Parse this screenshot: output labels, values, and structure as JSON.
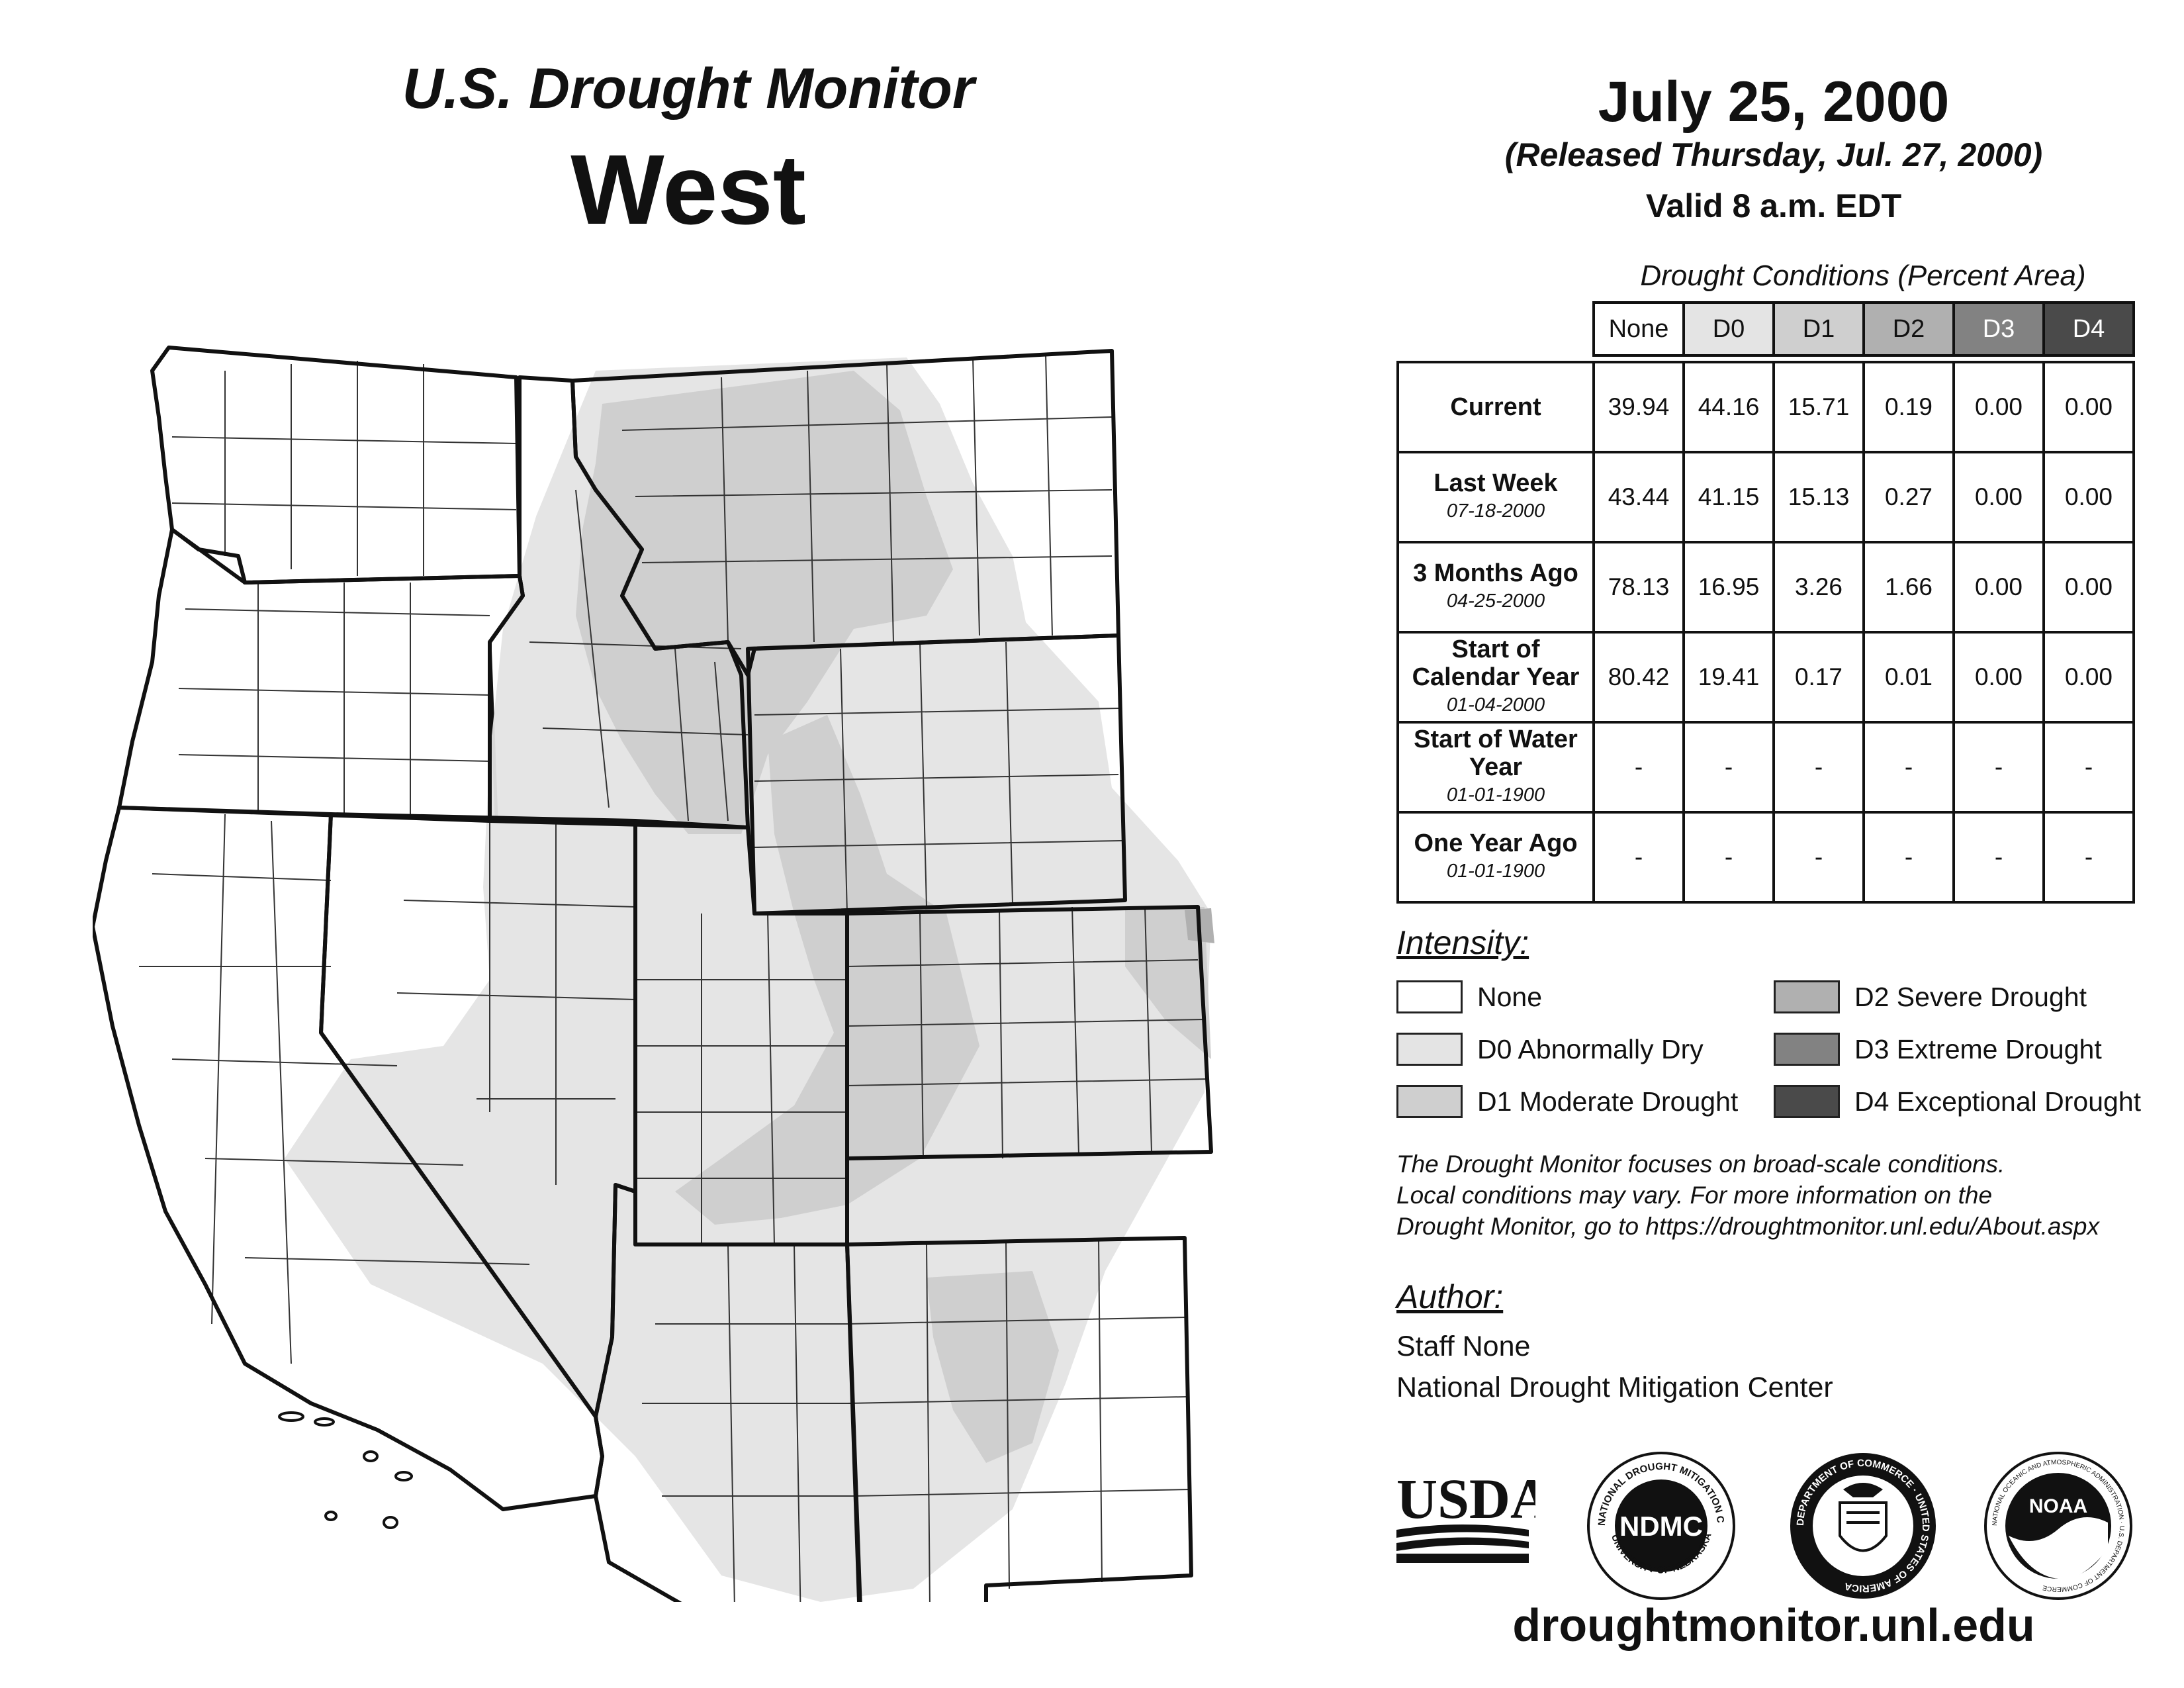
{
  "header": {
    "product": "U.S. Drought Monitor",
    "region": "West",
    "date": "July 25, 2000",
    "released": "(Released Thursday, Jul. 27, 2000)",
    "valid": "Valid 8 a.m. EDT"
  },
  "table": {
    "caption": "Drought Conditions (Percent Area)",
    "columns": [
      "None",
      "D0",
      "D1",
      "D2",
      "D3",
      "D4"
    ],
    "column_colors": [
      "#ffffff",
      "#e4e4e4",
      "#cfcfcf",
      "#b0b0b0",
      "#828282",
      "#4a4a4a"
    ],
    "rows": [
      {
        "label": "Current",
        "date": "",
        "values": [
          "39.94",
          "44.16",
          "15.71",
          "0.19",
          "0.00",
          "0.00"
        ]
      },
      {
        "label": "Last Week",
        "date": "07-18-2000",
        "values": [
          "43.44",
          "41.15",
          "15.13",
          "0.27",
          "0.00",
          "0.00"
        ]
      },
      {
        "label": "3 Months Ago",
        "date": "04-25-2000",
        "values": [
          "78.13",
          "16.95",
          "3.26",
          "1.66",
          "0.00",
          "0.00"
        ]
      },
      {
        "label": "Start of Calendar Year",
        "date": "01-04-2000",
        "values": [
          "80.42",
          "19.41",
          "0.17",
          "0.01",
          "0.00",
          "0.00"
        ]
      },
      {
        "label": "Start of Water Year",
        "date": "01-01-1900",
        "values": [
          "-",
          "-",
          "-",
          "-",
          "-",
          "-"
        ]
      },
      {
        "label": "One Year Ago",
        "date": "01-01-1900",
        "values": [
          "-",
          "-",
          "-",
          "-",
          "-",
          "-"
        ]
      }
    ]
  },
  "legend": {
    "title": "Intensity:",
    "items": [
      {
        "label": "None",
        "color": "#ffffff"
      },
      {
        "label": "D0 Abnormally Dry",
        "color": "#e4e4e4"
      },
      {
        "label": "D1 Moderate Drought",
        "color": "#cfcfcf"
      },
      {
        "label": "D2 Severe Drought",
        "color": "#b0b0b0"
      },
      {
        "label": "D3 Extreme Drought",
        "color": "#828282"
      },
      {
        "label": "D4 Exceptional Drought",
        "color": "#4a4a4a"
      }
    ]
  },
  "note": {
    "line1": "The Drought Monitor focuses on broad-scale conditions.",
    "line2": "Local conditions may vary. For more information on the",
    "line3": "Drought Monitor, go to https://droughtmonitor.unl.edu/About.aspx"
  },
  "author": {
    "title": "Author:",
    "name": "Staff None",
    "org": "National Drought Mitigation Center"
  },
  "logos": {
    "usda": "USDA",
    "ndmc": "NDMC",
    "ndmc_ring_top": "NATIONAL DROUGHT MITIGATION CENTER",
    "ndmc_ring_bottom": "UNIVERSITY OF NEBRASKA",
    "doc_ring": "DEPARTMENT OF COMMERCE · UNITED STATES OF AMERICA",
    "noaa": "NOAA",
    "noaa_ring": "NATIONAL OCEANIC AND ATMOSPHERIC ADMINISTRATION · U.S. DEPARTMENT OF COMMERCE"
  },
  "url": "droughtmonitor.unl.edu",
  "map_colors": {
    "none": "#ffffff",
    "d0": "#e4e4e4",
    "d1": "#cfcfcf",
    "d2": "#b0b0b0",
    "outline": "#111111"
  }
}
